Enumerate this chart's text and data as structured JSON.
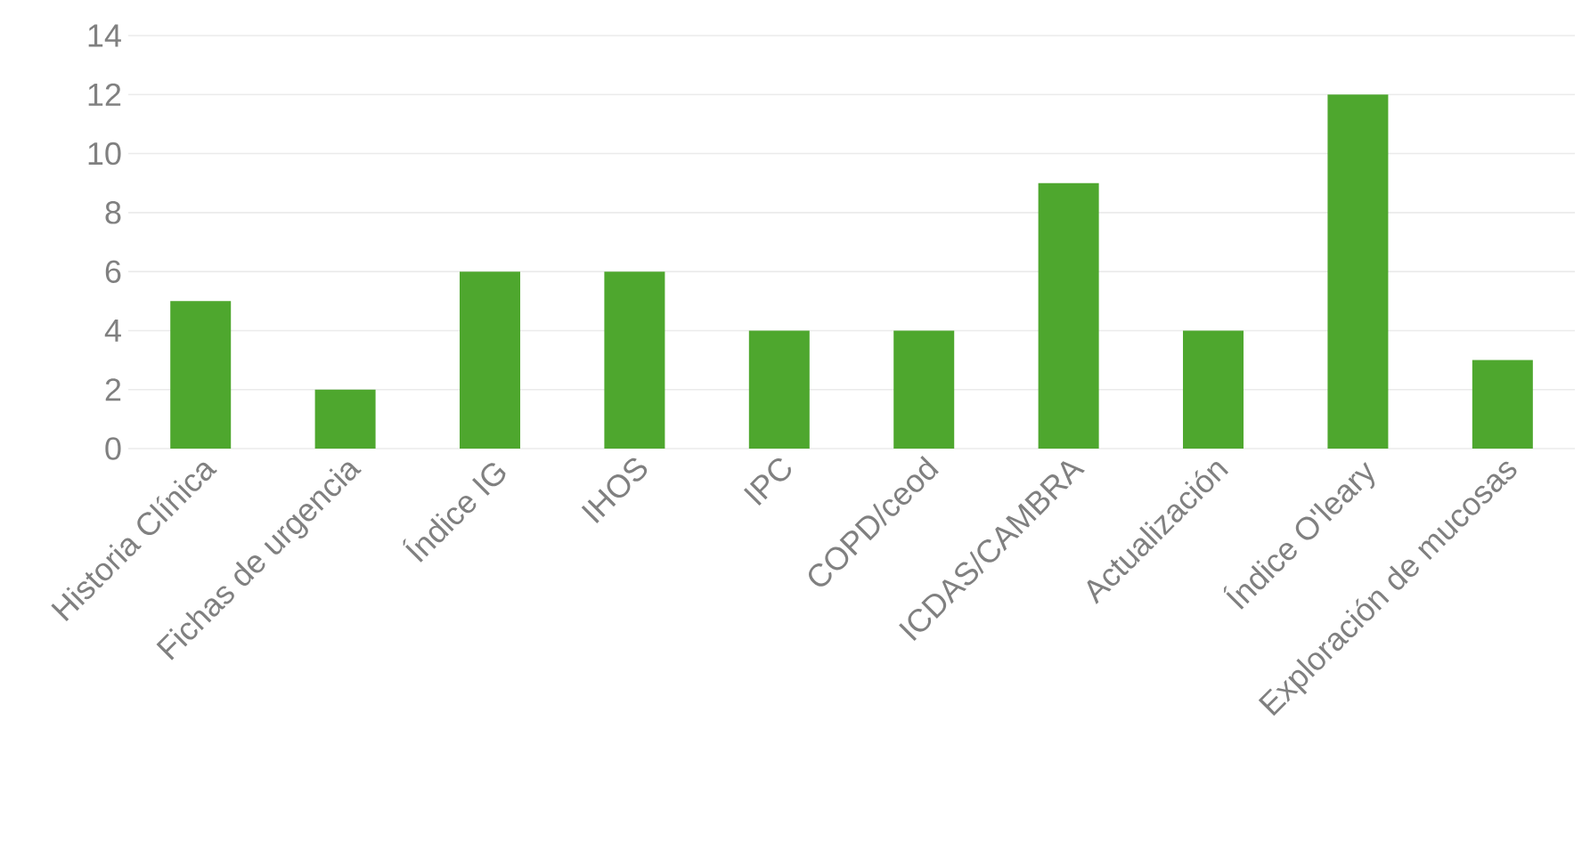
{
  "chart_data": {
    "type": "bar",
    "categories": [
      "Historia Clínica",
      "Fichas de urgencia",
      "Índice IG",
      "IHOS",
      "IPC",
      "COPD/ceod",
      "ICDAS/CAMBRA",
      "Actualización",
      "Índice O'leary",
      "Exploración de mucosas"
    ],
    "values": [
      5,
      2,
      6,
      6,
      4,
      4,
      9,
      4,
      12,
      3
    ],
    "color": "#4ea72e",
    "ylim": [
      0,
      14
    ],
    "yticks": [
      0,
      2,
      4,
      6,
      8,
      10,
      12,
      14
    ],
    "grid": "y"
  }
}
